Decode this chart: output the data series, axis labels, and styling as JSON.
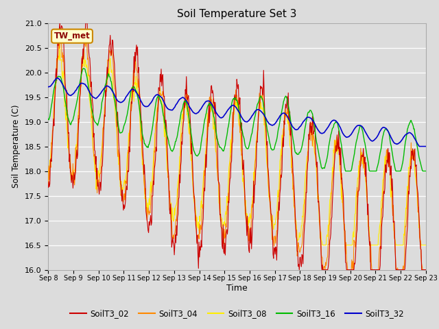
{
  "title": "Soil Temperature Set 3",
  "xlabel": "Time",
  "ylabel": "Soil Temperature (C)",
  "ylim": [
    16.0,
    21.0
  ],
  "yticks": [
    16.0,
    16.5,
    17.0,
    17.5,
    18.0,
    18.5,
    19.0,
    19.5,
    20.0,
    20.5,
    21.0
  ],
  "xtick_labels": [
    "Sep 8",
    "Sep 9",
    "Sep 10",
    "Sep 11",
    "Sep 12",
    "Sep 13",
    "Sep 14",
    "Sep 15",
    "Sep 16",
    "Sep 17",
    "Sep 18",
    "Sep 19",
    "Sep 20",
    "Sep 21",
    "Sep 22",
    "Sep 23"
  ],
  "series_colors": {
    "SoilT3_02": "#cc0000",
    "SoilT3_04": "#ff8800",
    "SoilT3_08": "#ffee00",
    "SoilT3_16": "#00bb00",
    "SoilT3_32": "#0000cc"
  },
  "annotation_text": "TW_met",
  "annotation_bg": "#ffffcc",
  "annotation_border": "#cc8800",
  "background_color": "#dcdcdc",
  "n_points": 720,
  "legend_colors": [
    "#cc0000",
    "#ff8800",
    "#ffee00",
    "#00bb00",
    "#0000cc"
  ],
  "legend_labels": [
    "SoilT3_02",
    "SoilT3_04",
    "SoilT3_08",
    "SoilT3_16",
    "SoilT3_32"
  ]
}
